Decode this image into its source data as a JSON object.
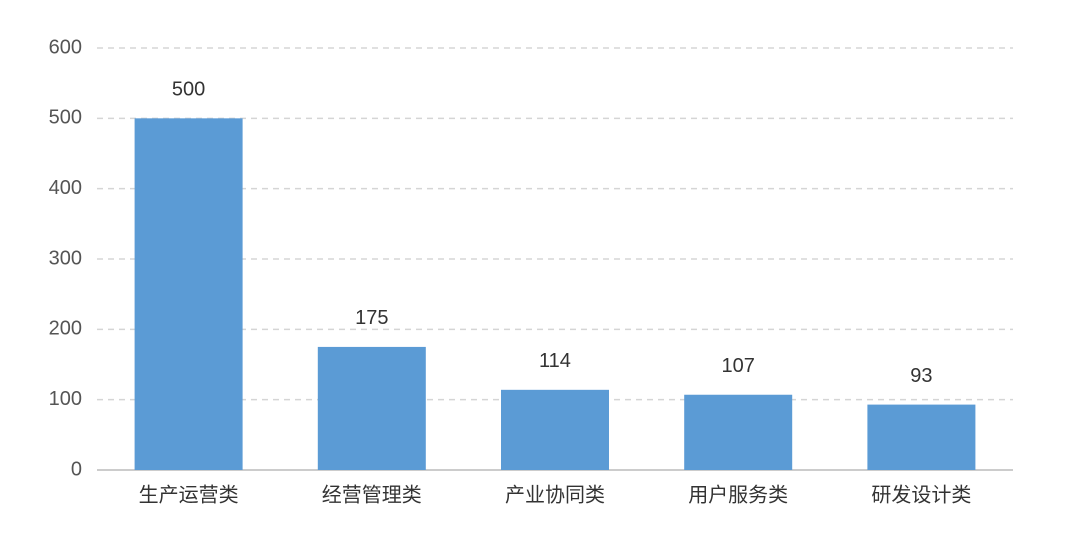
{
  "chart_data": {
    "type": "bar",
    "categories": [
      "生产运营类",
      "经营管理类",
      "产业协同类",
      "用户服务类",
      "研发设计类"
    ],
    "values": [
      500,
      175,
      114,
      107,
      93
    ],
    "color": "#5b9bd5",
    "ylim": [
      0,
      600
    ],
    "yticks": [
      0,
      100,
      200,
      300,
      400,
      500,
      600
    ],
    "grid": true,
    "data_labels": true
  }
}
